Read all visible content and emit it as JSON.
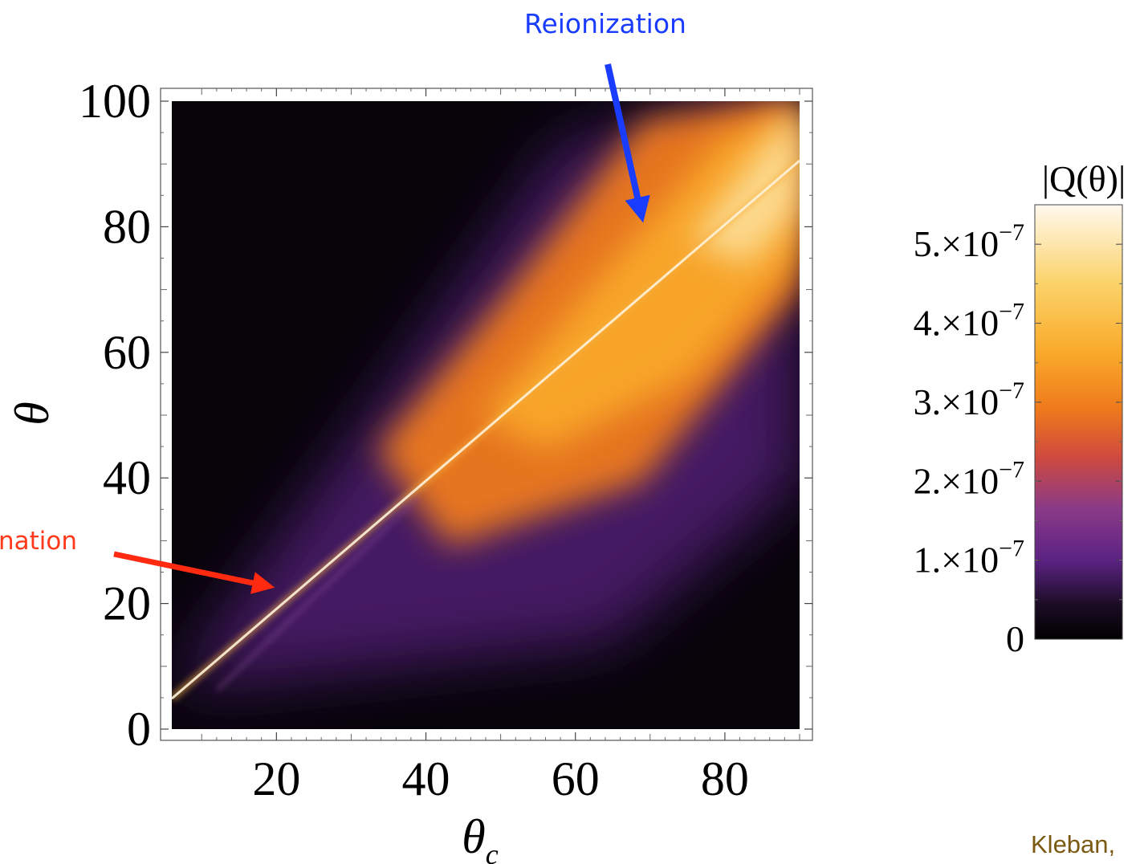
{
  "chart_data": {
    "type": "heatmap",
    "xlabel": "θ",
    "xlabel_sub": "c",
    "ylabel": "θ",
    "xlim": [
      6,
      90
    ],
    "ylim": [
      0,
      100
    ],
    "x_ticks": [
      "20",
      "40",
      "60",
      "80"
    ],
    "x_tick_values": [
      20,
      40,
      60,
      80
    ],
    "y_ticks": [
      "0",
      "20",
      "40",
      "60",
      "80",
      "100"
    ],
    "y_tick_values": [
      0,
      20,
      40,
      60,
      80,
      100
    ],
    "colorbar": {
      "title": "|Q(θ)|",
      "min": 0,
      "max": 5.5e-07,
      "ticks": [
        {
          "value": 0,
          "mantissa": "0",
          "exponent": ""
        },
        {
          "value": 1e-07,
          "mantissa": "1.",
          "exponent": "−7"
        },
        {
          "value": 2e-07,
          "mantissa": "2.",
          "exponent": "−7"
        },
        {
          "value": 3e-07,
          "mantissa": "3.",
          "exponent": "−7"
        },
        {
          "value": 4e-07,
          "mantissa": "4.",
          "exponent": "−7"
        },
        {
          "value": 5e-07,
          "mantissa": "5.",
          "exponent": "−7"
        }
      ],
      "times": "×",
      "base": "10"
    },
    "annotations": [
      {
        "text": "Reionization",
        "color": "#1a3cff",
        "points_to": [
          70,
          81
        ]
      },
      {
        "text": "nation",
        "color": "#ff3a1a",
        "points_to": [
          21,
          23
        ]
      }
    ],
    "features": [
      {
        "description_value": "bright diagonal ridge along θ ≈ θc",
        "from": [
          6,
          5
        ],
        "to": [
          90,
          90
        ]
      }
    ],
    "colormap": [
      "#000000",
      "#2a1133",
      "#5a2282",
      "#8a3a88",
      "#cf4a3e",
      "#ef7a1c",
      "#f9aa2a",
      "#fbd36a",
      "#fff8ee"
    ]
  },
  "credit": "Kleban,"
}
